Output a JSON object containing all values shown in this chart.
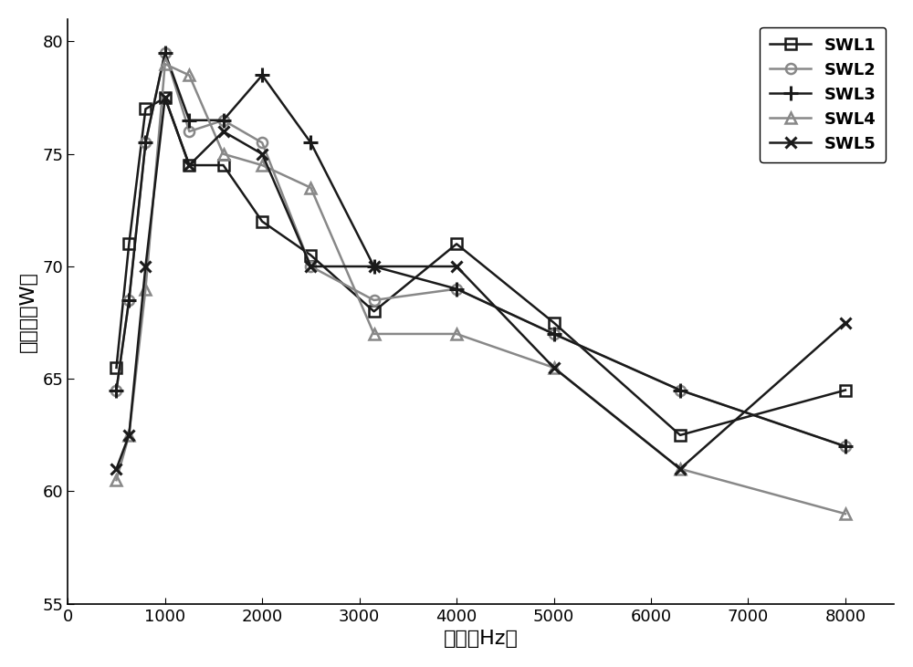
{
  "x": [
    500,
    630,
    800,
    1000,
    1250,
    1600,
    2000,
    2500,
    3150,
    4000,
    5000,
    6300,
    8000
  ],
  "SWL1": [
    65.5,
    71.0,
    77.0,
    77.5,
    74.5,
    74.5,
    72.0,
    70.5,
    68.0,
    71.0,
    67.5,
    62.5,
    64.5
  ],
  "SWL2": [
    64.5,
    68.5,
    75.5,
    79.5,
    76.0,
    76.5,
    75.5,
    70.0,
    68.5,
    69.0,
    67.0,
    64.5,
    62.0
  ],
  "SWL3": [
    64.5,
    68.5,
    75.5,
    79.5,
    76.5,
    76.5,
    78.5,
    75.5,
    70.0,
    69.0,
    67.0,
    64.5,
    62.0
  ],
  "SWL4": [
    60.5,
    62.5,
    69.0,
    79.0,
    78.5,
    75.0,
    74.5,
    73.5,
    67.0,
    67.0,
    65.5,
    61.0,
    59.0
  ],
  "SWL5": [
    61.0,
    62.5,
    70.0,
    77.5,
    74.5,
    76.0,
    75.0,
    70.0,
    70.0,
    70.0,
    65.5,
    61.0,
    67.5
  ],
  "colors": {
    "SWL1": "#1a1a1a",
    "SWL2": "#888888",
    "SWL3": "#1a1a1a",
    "SWL4": "#888888",
    "SWL5": "#1a1a1a"
  },
  "markers": {
    "SWL1": "s",
    "SWL2": "o",
    "SWL3": "+",
    "SWL4": "^",
    "SWL5": "x"
  },
  "markerfacecolor": {
    "SWL1": "none",
    "SWL2": "none",
    "SWL3": "none",
    "SWL4": "none",
    "SWL5": "none"
  },
  "ylabel": "声功率（W）",
  "xlabel": "频率（Hz）",
  "ylim": [
    55,
    81
  ],
  "yticks": [
    55,
    60,
    65,
    70,
    75,
    80
  ],
  "xticks": [
    0,
    1000,
    2000,
    3000,
    4000,
    5000,
    6000,
    7000,
    8000
  ],
  "xlim": [
    0,
    8500
  ],
  "linewidth": 1.8,
  "markersize": 8,
  "markersize_plus": 12,
  "markersize_x": 9,
  "legend_fontsize": 13,
  "axis_fontsize": 16,
  "tick_fontsize": 13,
  "background_color": "#ffffff"
}
